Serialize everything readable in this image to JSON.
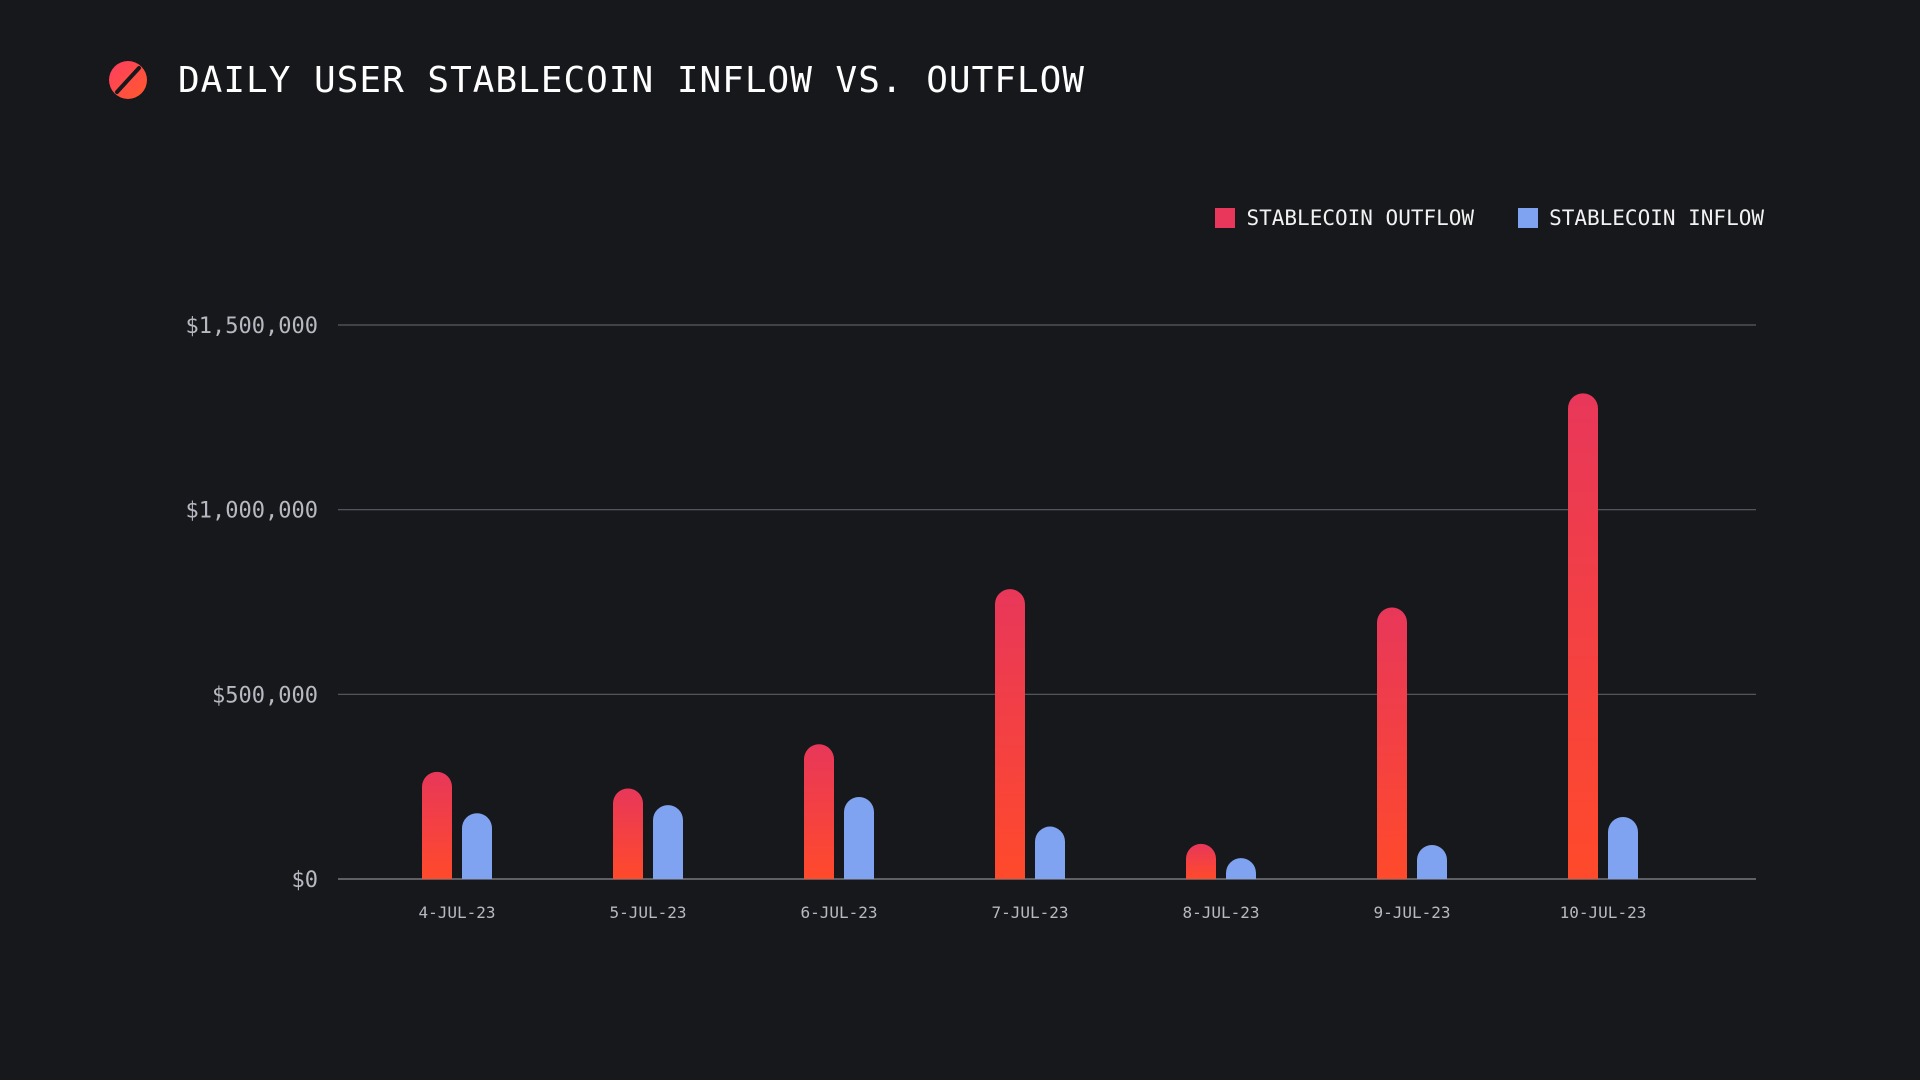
{
  "header": {
    "title": "DAILY USER STABLECOIN INFLOW VS. OUTFLOW"
  },
  "colors": {
    "background": "#17181c",
    "outflow_top": "#e8375a",
    "outflow_bottom": "#ff4a2b",
    "inflow": "#7fa3f0",
    "grid": "#5a5c63",
    "axis_text": "#b7b9c1",
    "logo_red": "#ff4f4f"
  },
  "icons": {
    "logo": "slashed-circle-logo"
  },
  "chart_data": {
    "type": "bar",
    "title": "DAILY USER STABLECOIN INFLOW VS. OUTFLOW",
    "xlabel": "",
    "ylabel": "",
    "categories": [
      "4-JUL-23",
      "5-JUL-23",
      "6-JUL-23",
      "7-JUL-23",
      "8-JUL-23",
      "9-JUL-23",
      "10-JUL-23"
    ],
    "series": [
      {
        "name": "STABLECOIN OUTFLOW",
        "values": [
          290000,
          245000,
          365000,
          785000,
          95000,
          735000,
          1315000
        ]
      },
      {
        "name": "STABLECOIN INFLOW",
        "values": [
          178000,
          200000,
          222000,
          142000,
          32000,
          92000,
          168000
        ]
      }
    ],
    "ylim": [
      0,
      1500000
    ],
    "yticks": [
      0,
      500000,
      1000000,
      1500000
    ],
    "ytick_labels": [
      "$0",
      "$500,000",
      "$1,000,000",
      "$1,500,000"
    ],
    "grid": true,
    "legend_position": "top-right"
  }
}
